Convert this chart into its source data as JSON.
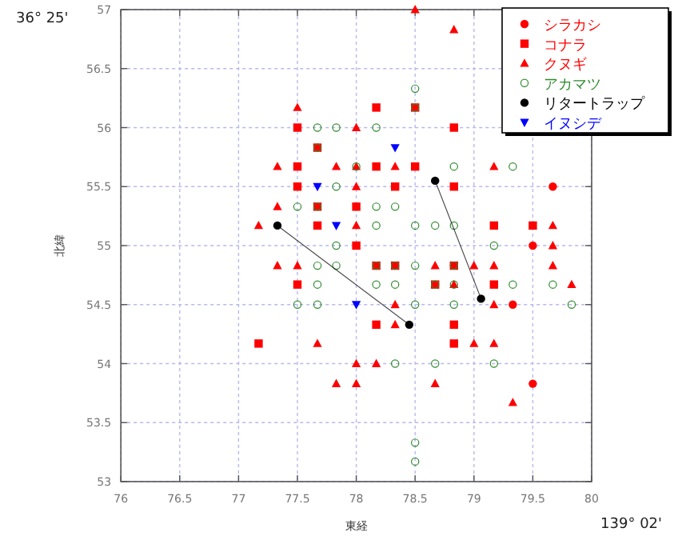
{
  "chart_data": {
    "type": "scatter",
    "xlabel": "東経",
    "ylabel": "北緯",
    "annotations": [
      "36° 25'",
      "139° 02'"
    ],
    "xlim": [
      76,
      80
    ],
    "ylim": [
      53,
      57
    ],
    "xticks": [
      76,
      76.5,
      77,
      77.5,
      78,
      78.5,
      79,
      79.5,
      80
    ],
    "yticks": [
      53,
      53.5,
      54,
      54.5,
      55,
      55.5,
      56,
      56.5,
      57
    ],
    "grid": true,
    "legend": "top right",
    "series": [
      {
        "name": "シラカシ",
        "color": "#ff0000",
        "marker": "circle",
        "x": [
          79.67,
          79.5,
          79.33,
          79.5
        ],
        "values": [
          55.5,
          55,
          54.5,
          53.83
        ]
      },
      {
        "name": "コナラ",
        "color": "#ff0000",
        "marker": "square",
        "x": [
          78.5,
          78.17,
          77.5,
          78.83,
          77.67,
          77.5,
          78.17,
          78.5,
          77.5,
          78.33,
          78.83,
          77.67,
          78,
          77.67,
          79.17,
          79.5,
          78,
          78.17,
          78.33,
          78.83,
          77.5,
          78.67,
          79.17,
          78.17,
          78.83,
          77.17,
          78.83
        ],
        "values": [
          56.17,
          56.17,
          56,
          56,
          55.83,
          55.67,
          55.67,
          55.67,
          55.5,
          55.5,
          55.5,
          55.33,
          55.33,
          55.17,
          55.17,
          55.17,
          55,
          54.83,
          54.83,
          54.83,
          54.67,
          54.67,
          54.67,
          54.33,
          54.33,
          54.17,
          54.17
        ]
      },
      {
        "name": "クヌギ",
        "color": "#ff0000",
        "marker": "triangle",
        "x": [
          78.5,
          78.83,
          77.5,
          78,
          77.33,
          77.83,
          78,
          78.33,
          79.17,
          78,
          77.33,
          77.17,
          78,
          79.67,
          79.67,
          77.33,
          77.5,
          78.67,
          79,
          79.17,
          79.67,
          78.83,
          79.83,
          78.33,
          79.17,
          78.33,
          77.67,
          79,
          79.17,
          78,
          78.17,
          77.83,
          78,
          78.67,
          79.33
        ],
        "values": [
          57,
          56.83,
          56.17,
          56,
          55.67,
          55.67,
          55.67,
          55.67,
          55.67,
          55.5,
          55.33,
          55.17,
          55.17,
          55.17,
          55,
          54.83,
          54.83,
          54.83,
          54.83,
          54.83,
          54.83,
          54.67,
          54.67,
          54.5,
          54.5,
          54.33,
          54.17,
          54.17,
          54.17,
          54,
          54,
          53.83,
          53.83,
          53.83,
          53.67
        ]
      },
      {
        "name": "アカマツ",
        "color": "#2e8b2e",
        "marker": "circle-open",
        "x": [
          78.5,
          77.67,
          77.83,
          78.17,
          77.67,
          78.5,
          78,
          78.83,
          79.33,
          77.83,
          77.5,
          77.67,
          78.17,
          78.33,
          78.17,
          78.5,
          78.67,
          78.83,
          77.83,
          79.17,
          77.67,
          77.83,
          78.17,
          78.33,
          78.5,
          78.83,
          77.67,
          78.17,
          78.33,
          78.67,
          78.83,
          79.33,
          79.67,
          77.5,
          77.67,
          78.5,
          78.83,
          79.83,
          78.33,
          78.67,
          79.17,
          78.5,
          78.5
        ],
        "values": [
          56.33,
          56,
          56,
          56,
          55.83,
          56.17,
          55.67,
          55.67,
          55.67,
          55.5,
          55.33,
          55.33,
          55.33,
          55.33,
          55.17,
          55.17,
          55.17,
          55.17,
          55,
          55,
          54.83,
          54.83,
          54.83,
          54.83,
          54.83,
          54.83,
          54.67,
          54.67,
          54.67,
          54.67,
          54.67,
          54.67,
          54.67,
          54.5,
          54.5,
          54.5,
          54.5,
          54.5,
          54,
          54,
          54,
          53.33,
          53.17
        ]
      },
      {
        "name": "リタートラップ",
        "color": "#000000",
        "marker": "circle",
        "type": "line",
        "x": [
          77.33,
          78.45,
          null,
          78.67,
          79.06
        ],
        "values": [
          55.17,
          54.33,
          null,
          55.55,
          54.55
        ]
      },
      {
        "name": "イヌシデ",
        "color": "#0000ff",
        "marker": "triangle-down",
        "x": [
          78.33,
          77.67,
          77.83,
          78
        ],
        "values": [
          55.83,
          55.5,
          55.17,
          54.5
        ]
      }
    ]
  }
}
